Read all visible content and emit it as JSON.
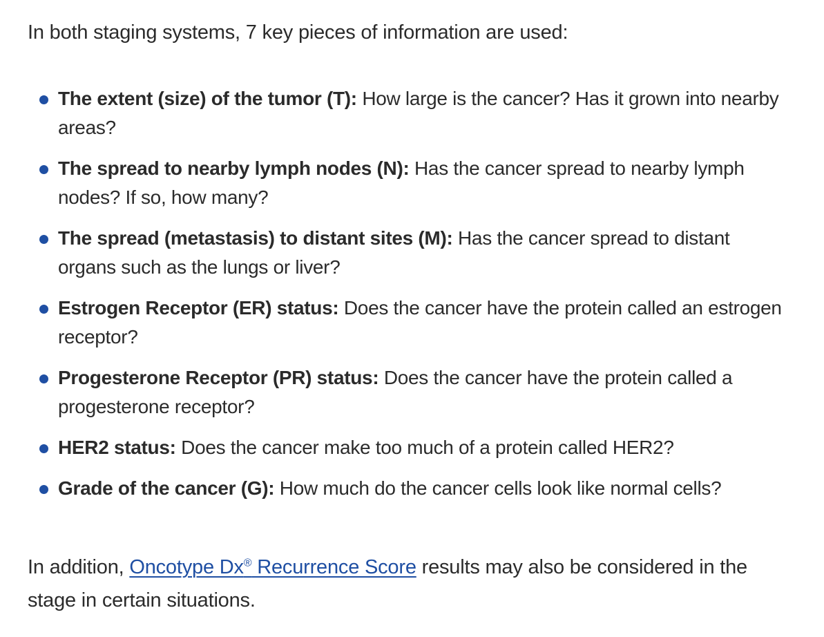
{
  "intro": {
    "text": "In both staging systems, 7 key pieces of information are used:"
  },
  "items": [
    {
      "term": "The extent (size) of the tumor (T):",
      "description": "How large is the cancer?  Has it grown into nearby areas?"
    },
    {
      "term": "The spread to nearby lymph nodes (N):",
      "description": "Has the cancer spread to nearby lymph nodes? If so, how many?"
    },
    {
      "term": "The spread (metastasis) to distant sites (M):",
      "description": "Has the cancer spread to distant organs such as the lungs or liver?"
    },
    {
      "term": "Estrogen Receptor (ER) status:",
      "description": "Does the cancer have the protein called an estrogen receptor?"
    },
    {
      "term": "Progesterone Receptor (PR) status:",
      "description": "Does the cancer have the protein called a progesterone receptor?"
    },
    {
      "term": "HER2 status:",
      "description": "Does the cancer make too much of a protein called HER2?"
    },
    {
      "term": "Grade of the cancer (G):",
      "description": "How much do the cancer cells look like normal cells?"
    }
  ],
  "outro": {
    "prefix": "In addition, ",
    "link_text": "Oncotype Dx",
    "link_symbol": "®",
    "link_suffix": " Recurrence Score",
    "suffix": " results may also be considered in the stage in certain situations."
  },
  "colors": {
    "link": "#1f4fa3",
    "bullet": "#1f4fa3",
    "text": "#2b2b2b"
  }
}
